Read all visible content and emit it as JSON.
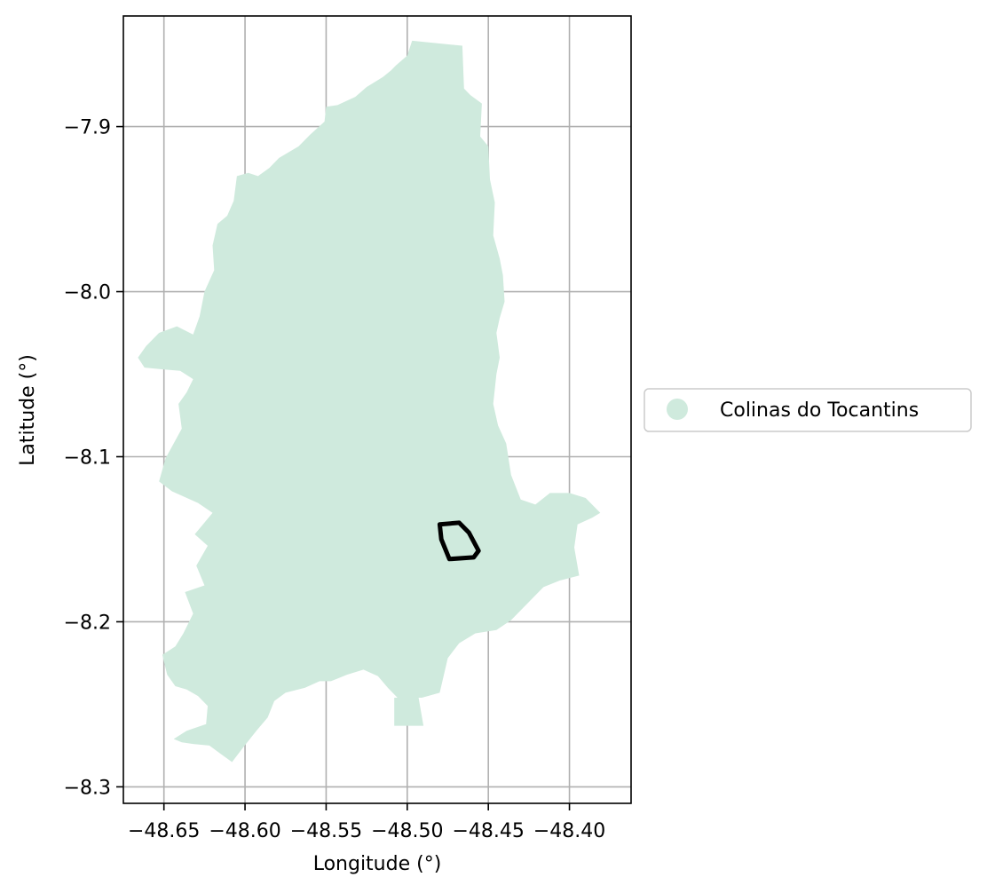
{
  "chart_data": {
    "type": "map",
    "xlabel": "Longitude (°)",
    "ylabel": "Latitude (°)",
    "xlim": [
      -48.675,
      -48.362
    ],
    "ylim": [
      -8.31,
      -7.833
    ],
    "xticks": [
      -48.65,
      -48.6,
      -48.55,
      -48.5,
      -48.45,
      -48.4
    ],
    "xtick_labels": [
      "−48.65",
      "−48.60",
      "−48.55",
      "−48.50",
      "−48.45",
      "−48.40"
    ],
    "yticks": [
      -7.9,
      -8.0,
      -8.1,
      -8.2,
      -8.3
    ],
    "ytick_labels": [
      "−7.9",
      "−8.0",
      "−8.1",
      "−8.2",
      "−8.3"
    ],
    "grid": true,
    "legend_placement": "right-outside",
    "legend": [
      {
        "label": "Colinas do Tocantins",
        "color": "#cfeadd"
      }
    ],
    "region": {
      "name": "Colinas do Tocantins",
      "color": "#cfeadd",
      "boundary": [
        [
          -48.497,
          -7.848
        ],
        [
          -48.466,
          -7.851
        ],
        [
          -48.465,
          -7.877
        ],
        [
          -48.461,
          -7.881
        ],
        [
          -48.454,
          -7.886
        ],
        [
          -48.455,
          -7.906
        ],
        [
          -48.45,
          -7.912
        ],
        [
          -48.449,
          -7.932
        ],
        [
          -48.446,
          -7.946
        ],
        [
          -48.447,
          -7.966
        ],
        [
          -48.443,
          -7.98
        ],
        [
          -48.441,
          -7.99
        ],
        [
          -48.44,
          -8.006
        ],
        [
          -48.443,
          -8.016
        ],
        [
          -48.445,
          -8.025
        ],
        [
          -48.443,
          -8.04
        ],
        [
          -48.445,
          -8.05
        ],
        [
          -48.447,
          -8.068
        ],
        [
          -48.444,
          -8.081
        ],
        [
          -48.439,
          -8.092
        ],
        [
          -48.436,
          -8.111
        ],
        [
          -48.43,
          -8.126
        ],
        [
          -48.421,
          -8.129
        ],
        [
          -48.412,
          -8.122
        ],
        [
          -48.4,
          -8.122
        ],
        [
          -48.39,
          -8.125
        ],
        [
          -48.381,
          -8.134
        ],
        [
          -48.386,
          -8.137
        ],
        [
          -48.395,
          -8.141
        ],
        [
          -48.397,
          -8.155
        ],
        [
          -48.394,
          -8.172
        ],
        [
          -48.406,
          -8.175
        ],
        [
          -48.416,
          -8.179
        ],
        [
          -48.425,
          -8.188
        ],
        [
          -48.436,
          -8.199
        ],
        [
          -48.445,
          -8.205
        ],
        [
          -48.458,
          -8.207
        ],
        [
          -48.468,
          -8.213
        ],
        [
          -48.475,
          -8.222
        ],
        [
          -48.48,
          -8.243
        ],
        [
          -48.491,
          -8.246
        ],
        [
          -48.503,
          -8.246
        ],
        [
          -48.508,
          -8.246
        ],
        [
          -48.508,
          -8.263
        ],
        [
          -48.49,
          -8.263
        ],
        [
          -48.493,
          -8.246
        ],
        [
          -48.506,
          -8.246
        ],
        [
          -48.512,
          -8.24
        ],
        [
          -48.518,
          -8.233
        ],
        [
          -48.527,
          -8.229
        ],
        [
          -48.537,
          -8.232
        ],
        [
          -48.547,
          -8.236
        ],
        [
          -48.554,
          -8.236
        ],
        [
          -48.563,
          -8.24
        ],
        [
          -48.575,
          -8.243
        ],
        [
          -48.582,
          -8.248
        ],
        [
          -48.586,
          -8.258
        ],
        [
          -48.593,
          -8.266
        ],
        [
          -48.601,
          -8.276
        ],
        [
          -48.608,
          -8.285
        ],
        [
          -48.615,
          -8.28
        ],
        [
          -48.622,
          -8.275
        ],
        [
          -48.632,
          -8.274
        ],
        [
          -48.639,
          -8.273
        ],
        [
          -48.644,
          -8.271
        ],
        [
          -48.636,
          -8.266
        ],
        [
          -48.624,
          -8.262
        ],
        [
          -48.623,
          -8.251
        ],
        [
          -48.629,
          -8.245
        ],
        [
          -48.636,
          -8.241
        ],
        [
          -48.643,
          -8.239
        ],
        [
          -48.648,
          -8.232
        ],
        [
          -48.651,
          -8.22
        ],
        [
          -48.643,
          -8.215
        ],
        [
          -48.638,
          -8.207
        ],
        [
          -48.632,
          -8.195
        ],
        [
          -48.637,
          -8.182
        ],
        [
          -48.625,
          -8.178
        ],
        [
          -48.63,
          -8.166
        ],
        [
          -48.623,
          -8.154
        ],
        [
          -48.631,
          -8.147
        ],
        [
          -48.62,
          -8.134
        ],
        [
          -48.629,
          -8.128
        ],
        [
          -48.645,
          -8.121
        ],
        [
          -48.653,
          -8.115
        ],
        [
          -48.649,
          -8.101
        ],
        [
          -48.639,
          -8.083
        ],
        [
          -48.641,
          -8.068
        ],
        [
          -48.636,
          -8.061
        ],
        [
          -48.632,
          -8.053
        ],
        [
          -48.64,
          -8.048
        ],
        [
          -48.652,
          -8.047
        ],
        [
          -48.662,
          -8.046
        ],
        [
          -48.666,
          -8.04
        ],
        [
          -48.661,
          -8.033
        ],
        [
          -48.653,
          -8.025
        ],
        [
          -48.642,
          -8.021
        ],
        [
          -48.632,
          -8.026
        ],
        [
          -48.628,
          -8.015
        ],
        [
          -48.625,
          -8.0
        ],
        [
          -48.619,
          -7.987
        ],
        [
          -48.62,
          -7.972
        ],
        [
          -48.617,
          -7.959
        ],
        [
          -48.611,
          -7.954
        ],
        [
          -48.607,
          -7.945
        ],
        [
          -48.605,
          -7.93
        ],
        [
          -48.598,
          -7.928
        ],
        [
          -48.592,
          -7.93
        ],
        [
          -48.585,
          -7.925
        ],
        [
          -48.579,
          -7.919
        ],
        [
          -48.567,
          -7.912
        ],
        [
          -48.56,
          -7.905
        ],
        [
          -48.551,
          -7.897
        ],
        [
          -48.55,
          -7.888
        ],
        [
          -48.543,
          -7.887
        ],
        [
          -48.532,
          -7.882
        ],
        [
          -48.525,
          -7.876
        ],
        [
          -48.515,
          -7.87
        ],
        [
          -48.51,
          -7.866
        ],
        [
          -48.507,
          -7.863
        ],
        [
          -48.5,
          -7.857
        ]
      ]
    },
    "outline": {
      "stroke": "#000000",
      "points": [
        [
          -48.468,
          -8.14
        ],
        [
          -48.462,
          -8.146
        ],
        [
          -48.456,
          -8.157
        ],
        [
          -48.459,
          -8.161
        ],
        [
          -48.474,
          -8.162
        ],
        [
          -48.479,
          -8.15
        ],
        [
          -48.48,
          -8.141
        ]
      ]
    }
  }
}
